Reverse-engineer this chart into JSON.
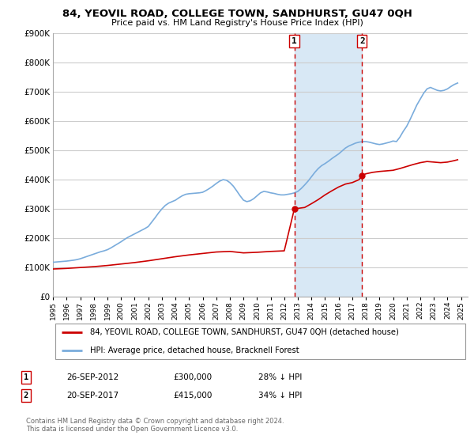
{
  "title1": "84, YEOVIL ROAD, COLLEGE TOWN, SANDHURST, GU47 0QH",
  "title2": "Price paid vs. HM Land Registry's House Price Index (HPI)",
  "ytick_values": [
    0,
    100000,
    200000,
    300000,
    400000,
    500000,
    600000,
    700000,
    800000,
    900000
  ],
  "ylim": [
    0,
    900000
  ],
  "xlim_start": 1995.0,
  "xlim_end": 2025.5,
  "hpi_color": "#7aacdc",
  "price_color": "#cc0000",
  "marker1_date": 2012.74,
  "marker2_date": 2017.72,
  "purchase1_price": 300000,
  "purchase2_price": 415000,
  "legend_line1": "84, YEOVIL ROAD, COLLEGE TOWN, SANDHURST, GU47 0QH (detached house)",
  "legend_line2": "HPI: Average price, detached house, Bracknell Forest",
  "table_row1": [
    "1",
    "26-SEP-2012",
    "£300,000",
    "28% ↓ HPI"
  ],
  "table_row2": [
    "2",
    "20-SEP-2017",
    "£415,000",
    "34% ↓ HPI"
  ],
  "footnote": "Contains HM Land Registry data © Crown copyright and database right 2024.\nThis data is licensed under the Open Government Licence v3.0.",
  "hpi_data": [
    [
      1995.0,
      118000
    ],
    [
      1995.25,
      119000
    ],
    [
      1995.5,
      120000
    ],
    [
      1995.75,
      121000
    ],
    [
      1996.0,
      122000
    ],
    [
      1996.25,
      123500
    ],
    [
      1996.5,
      125000
    ],
    [
      1996.75,
      127000
    ],
    [
      1997.0,
      130000
    ],
    [
      1997.25,
      134000
    ],
    [
      1997.5,
      138000
    ],
    [
      1997.75,
      142000
    ],
    [
      1998.0,
      146000
    ],
    [
      1998.25,
      150000
    ],
    [
      1998.5,
      154000
    ],
    [
      1998.75,
      157000
    ],
    [
      1999.0,
      161000
    ],
    [
      1999.25,
      167000
    ],
    [
      1999.5,
      174000
    ],
    [
      1999.75,
      181000
    ],
    [
      2000.0,
      188000
    ],
    [
      2000.25,
      196000
    ],
    [
      2000.5,
      203000
    ],
    [
      2000.75,
      209000
    ],
    [
      2001.0,
      215000
    ],
    [
      2001.25,
      221000
    ],
    [
      2001.5,
      227000
    ],
    [
      2001.75,
      233000
    ],
    [
      2002.0,
      240000
    ],
    [
      2002.25,
      255000
    ],
    [
      2002.5,
      270000
    ],
    [
      2002.75,
      286000
    ],
    [
      2003.0,
      300000
    ],
    [
      2003.25,
      312000
    ],
    [
      2003.5,
      320000
    ],
    [
      2003.75,
      325000
    ],
    [
      2004.0,
      330000
    ],
    [
      2004.25,
      338000
    ],
    [
      2004.5,
      345000
    ],
    [
      2004.75,
      350000
    ],
    [
      2005.0,
      352000
    ],
    [
      2005.25,
      353000
    ],
    [
      2005.5,
      354000
    ],
    [
      2005.75,
      355000
    ],
    [
      2006.0,
      357000
    ],
    [
      2006.25,
      363000
    ],
    [
      2006.5,
      370000
    ],
    [
      2006.75,
      378000
    ],
    [
      2007.0,
      387000
    ],
    [
      2007.25,
      395000
    ],
    [
      2007.5,
      400000
    ],
    [
      2007.75,
      398000
    ],
    [
      2008.0,
      390000
    ],
    [
      2008.25,
      378000
    ],
    [
      2008.5,
      362000
    ],
    [
      2008.75,
      345000
    ],
    [
      2009.0,
      330000
    ],
    [
      2009.25,
      325000
    ],
    [
      2009.5,
      328000
    ],
    [
      2009.75,
      335000
    ],
    [
      2010.0,
      345000
    ],
    [
      2010.25,
      355000
    ],
    [
      2010.5,
      360000
    ],
    [
      2010.75,
      358000
    ],
    [
      2011.0,
      355000
    ],
    [
      2011.25,
      353000
    ],
    [
      2011.5,
      350000
    ],
    [
      2011.75,
      348000
    ],
    [
      2012.0,
      348000
    ],
    [
      2012.25,
      350000
    ],
    [
      2012.5,
      352000
    ],
    [
      2012.75,
      355000
    ],
    [
      2013.0,
      360000
    ],
    [
      2013.25,
      370000
    ],
    [
      2013.5,
      382000
    ],
    [
      2013.75,
      395000
    ],
    [
      2014.0,
      410000
    ],
    [
      2014.25,
      425000
    ],
    [
      2014.5,
      438000
    ],
    [
      2014.75,
      448000
    ],
    [
      2015.0,
      455000
    ],
    [
      2015.25,
      463000
    ],
    [
      2015.5,
      472000
    ],
    [
      2015.75,
      480000
    ],
    [
      2016.0,
      488000
    ],
    [
      2016.25,
      498000
    ],
    [
      2016.5,
      508000
    ],
    [
      2016.75,
      515000
    ],
    [
      2017.0,
      520000
    ],
    [
      2017.25,
      525000
    ],
    [
      2017.5,
      528000
    ],
    [
      2017.75,
      530000
    ],
    [
      2018.0,
      530000
    ],
    [
      2018.25,
      528000
    ],
    [
      2018.5,
      525000
    ],
    [
      2018.75,
      522000
    ],
    [
      2019.0,
      520000
    ],
    [
      2019.25,
      522000
    ],
    [
      2019.5,
      525000
    ],
    [
      2019.75,
      528000
    ],
    [
      2020.0,
      532000
    ],
    [
      2020.25,
      530000
    ],
    [
      2020.5,
      545000
    ],
    [
      2020.75,
      565000
    ],
    [
      2021.0,
      582000
    ],
    [
      2021.25,
      605000
    ],
    [
      2021.5,
      630000
    ],
    [
      2021.75,
      655000
    ],
    [
      2022.0,
      675000
    ],
    [
      2022.25,
      695000
    ],
    [
      2022.5,
      710000
    ],
    [
      2022.75,
      715000
    ],
    [
      2023.0,
      710000
    ],
    [
      2023.25,
      705000
    ],
    [
      2023.5,
      703000
    ],
    [
      2023.75,
      705000
    ],
    [
      2024.0,
      710000
    ],
    [
      2024.25,
      718000
    ],
    [
      2024.5,
      725000
    ],
    [
      2024.75,
      730000
    ]
  ],
  "price_data": [
    [
      1995.0,
      95000
    ],
    [
      1996.0,
      97000
    ],
    [
      1997.0,
      100000
    ],
    [
      1998.0,
      103000
    ],
    [
      1999.0,
      107000
    ],
    [
      2000.0,
      112000
    ],
    [
      2001.0,
      117000
    ],
    [
      2002.0,
      123000
    ],
    [
      2003.0,
      130000
    ],
    [
      2004.0,
      137000
    ],
    [
      2005.0,
      143000
    ],
    [
      2006.0,
      148000
    ],
    [
      2007.0,
      153000
    ],
    [
      2008.0,
      155000
    ],
    [
      2009.0,
      150000
    ],
    [
      2010.0,
      152000
    ],
    [
      2011.0,
      155000
    ],
    [
      2012.0,
      157000
    ],
    [
      2012.74,
      300000
    ],
    [
      2013.0,
      302000
    ],
    [
      2013.5,
      305000
    ],
    [
      2014.0,
      318000
    ],
    [
      2014.5,
      332000
    ],
    [
      2015.0,
      348000
    ],
    [
      2015.5,
      362000
    ],
    [
      2016.0,
      375000
    ],
    [
      2016.5,
      385000
    ],
    [
      2017.0,
      390000
    ],
    [
      2017.5,
      400000
    ],
    [
      2017.72,
      415000
    ],
    [
      2018.0,
      420000
    ],
    [
      2018.5,
      425000
    ],
    [
      2019.0,
      428000
    ],
    [
      2019.5,
      430000
    ],
    [
      2020.0,
      432000
    ],
    [
      2020.5,
      438000
    ],
    [
      2021.0,
      445000
    ],
    [
      2021.5,
      452000
    ],
    [
      2022.0,
      458000
    ],
    [
      2022.5,
      462000
    ],
    [
      2023.0,
      460000
    ],
    [
      2023.5,
      458000
    ],
    [
      2024.0,
      460000
    ],
    [
      2024.5,
      465000
    ],
    [
      2024.75,
      468000
    ]
  ],
  "grid_color": "#cccccc",
  "shade_color": "#d8e8f5"
}
